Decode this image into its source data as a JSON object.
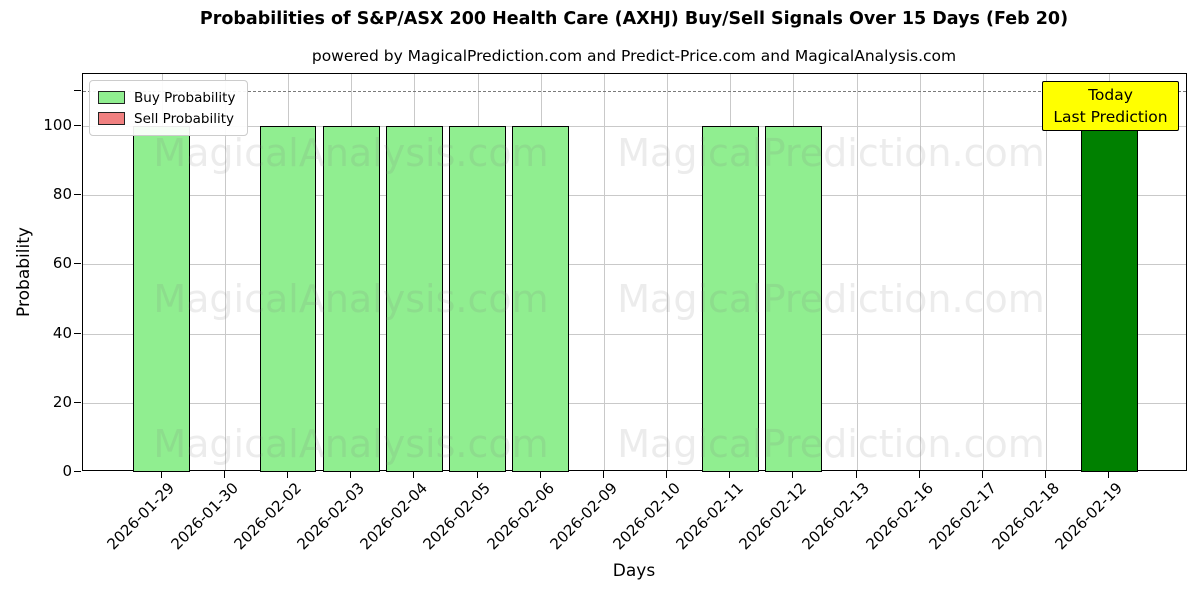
{
  "title": "Probabilities of S&P/ASX 200 Health Care (AXHJ) Buy/Sell Signals Over 15 Days (Feb 20)",
  "subtitle": "powered by MagicalPrediction.com and Predict-Price.com and MagicalAnalysis.com",
  "legend": {
    "items": [
      {
        "label": "Buy Probability",
        "color": "#90EE90"
      },
      {
        "label": "Sell Probability",
        "color": "#F08080"
      }
    ]
  },
  "annotation": {
    "line1": "Today",
    "line2": "Last Prediction",
    "bg": "#FFFF00"
  },
  "watermarks": {
    "left": "MagicalAnalysis.com",
    "right": "MagicalPrediction.com"
  },
  "chart_data": {
    "type": "bar",
    "title": "Probabilities of S&P/ASX 200 Health Care (AXHJ) Buy/Sell Signals Over 15 Days (Feb 20)",
    "xlabel": "Days",
    "ylabel": "Probability",
    "categories": [
      "2026-01-29",
      "2026-01-30",
      "2026-02-02",
      "2026-02-03",
      "2026-02-04",
      "2026-02-05",
      "2026-02-06",
      "2026-02-09",
      "2026-02-10",
      "2026-02-11",
      "2026-02-12",
      "2026-02-13",
      "2026-02-16",
      "2026-02-17",
      "2026-02-18",
      "2026-02-19"
    ],
    "series": [
      {
        "name": "Buy Probability",
        "color": "#90EE90",
        "values": [
          100,
          0,
          100,
          100,
          100,
          100,
          100,
          0,
          0,
          100,
          100,
          0,
          0,
          0,
          0,
          100
        ]
      },
      {
        "name": "Sell Probability",
        "color": "#F08080",
        "values": [
          0,
          0,
          0,
          0,
          0,
          0,
          0,
          0,
          0,
          0,
          0,
          0,
          0,
          0,
          0,
          0
        ]
      }
    ],
    "bar_colors": [
      "#90EE90",
      "#90EE90",
      "#90EE90",
      "#90EE90",
      "#90EE90",
      "#90EE90",
      "#90EE90",
      "#90EE90",
      "#90EE90",
      "#90EE90",
      "#90EE90",
      "#90EE90",
      "#90EE90",
      "#90EE90",
      "#90EE90",
      "#008000"
    ],
    "highlight_bar_index": 15,
    "highlight_bar_color": "#008000",
    "ylim": [
      0,
      115
    ],
    "yticks": [
      0,
      20,
      40,
      60,
      80,
      100
    ],
    "dashed_line_y": 110,
    "grid": true,
    "legend_position": "upper left"
  }
}
